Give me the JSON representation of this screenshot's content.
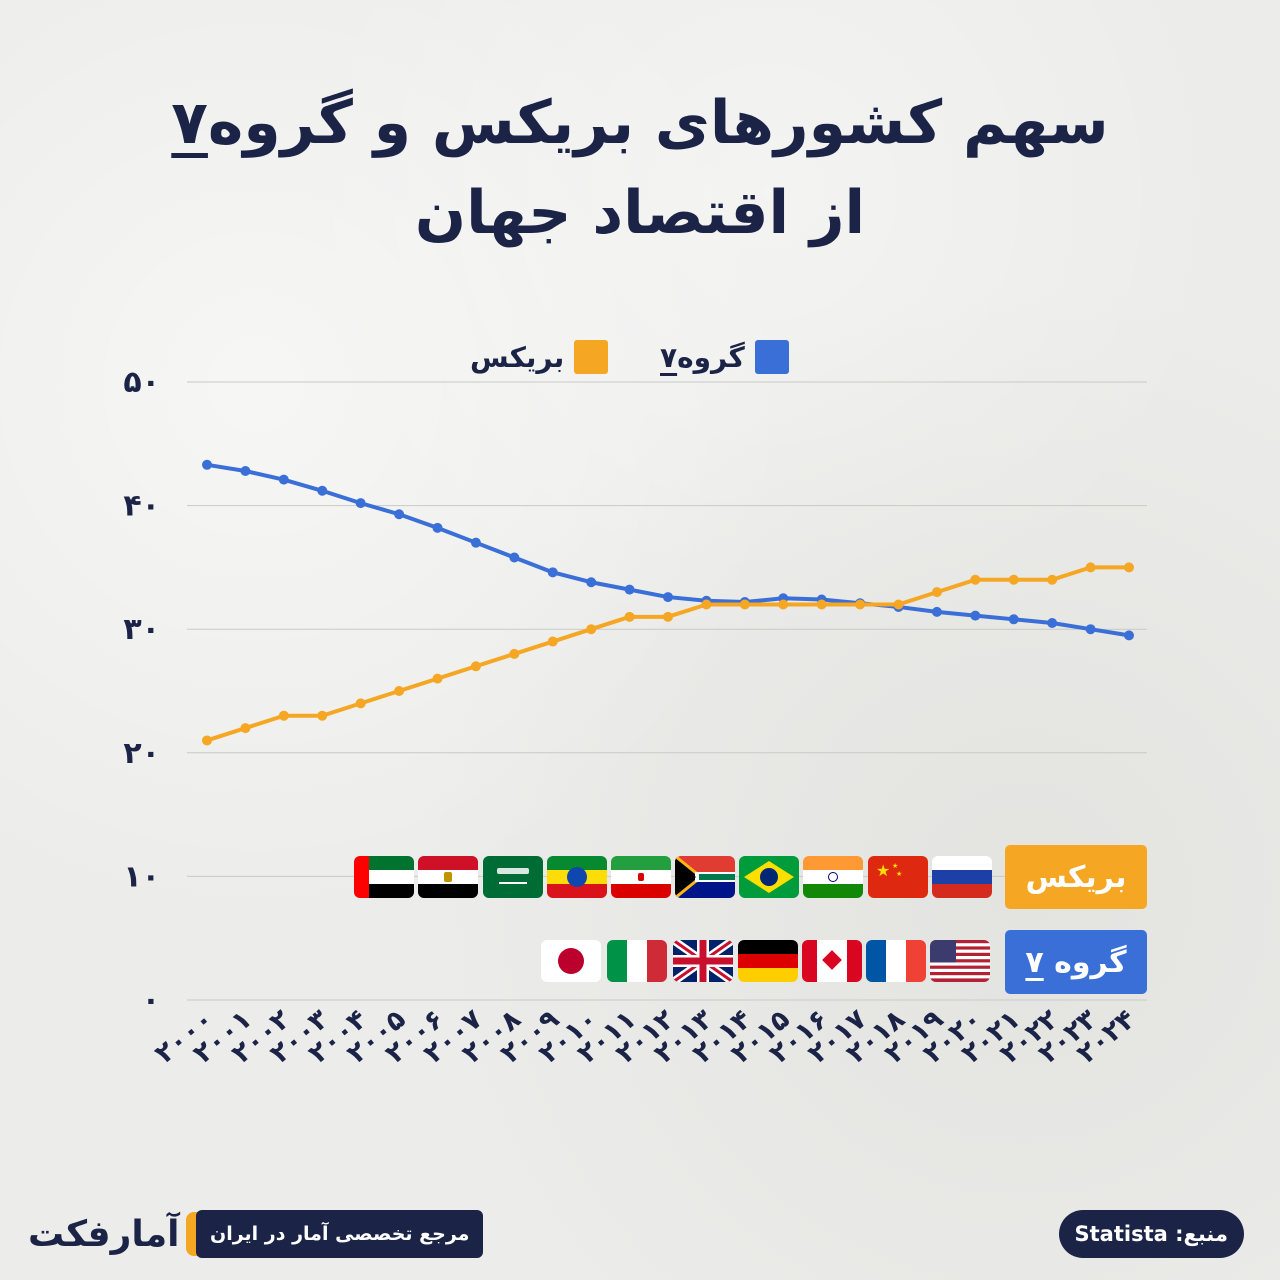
{
  "title": {
    "line1_prefix": "سهم کشورهای بریکس و گروه",
    "line1_number": "۷",
    "line2": "از اقتصاد جهان"
  },
  "legend": {
    "g7_label": "گروه",
    "g7_number": "۷",
    "brics_label": "بریکس"
  },
  "colors": {
    "g7": "#3b6fd8",
    "brics": "#f5a623",
    "text": "#1b2447",
    "grid": "#c9c9c6"
  },
  "badges": {
    "brics": "بریکس",
    "g7_prefix": "گروه",
    "g7_number": "۷"
  },
  "flags": {
    "brics": [
      "russia-flag",
      "china-flag",
      "india-flag",
      "brazil-flag",
      "south-africa-flag",
      "iran-flag",
      "ethiopia-flag",
      "saudi-arabia-flag",
      "egypt-flag",
      "uae-flag"
    ],
    "g7": [
      "usa-flag",
      "france-flag",
      "canada-flag",
      "germany-flag",
      "uk-flag",
      "italy-flag",
      "japan-flag"
    ]
  },
  "chart_data": {
    "type": "line",
    "x": [
      2000,
      2001,
      2002,
      2003,
      2004,
      2005,
      2006,
      2007,
      2008,
      2009,
      2010,
      2011,
      2012,
      2013,
      2014,
      2015,
      2016,
      2017,
      2018,
      2019,
      2020,
      2021,
      2022,
      2023,
      2024
    ],
    "x_tick_labels": [
      "۲۰۰۰",
      "۲۰۰۱",
      "۲۰۰۲",
      "۲۰۰۳",
      "۲۰۰۴",
      "۲۰۰۵",
      "۲۰۰۶",
      "۲۰۰۷",
      "۲۰۰۸",
      "۲۰۰۹",
      "۲۰۱۰",
      "۲۰۱۱",
      "۲۰۱۲",
      "۲۰۱۳",
      "۲۰۱۴",
      "۲۰۱۵",
      "۲۰۱۶",
      "۲۰۱۷",
      "۲۰۱۸",
      "۲۰۱۹",
      "۲۰۲۰",
      "۲۰۲۱",
      "۲۰۲۲",
      "۲۰۲۳",
      "۲۰۲۴"
    ],
    "y_ticks": [
      0,
      10,
      20,
      30,
      40,
      50
    ],
    "y_tick_labels": [
      "۰",
      "۱۰",
      "۲۰",
      "۳۰",
      "۴۰",
      "۵۰"
    ],
    "ylim": [
      0,
      50
    ],
    "grid": true,
    "legend_position": "top-center",
    "series": [
      {
        "name": "گروه ۷",
        "color": "#3b6fd8",
        "values": [
          43.3,
          42.8,
          42.1,
          41.2,
          40.2,
          39.3,
          38.2,
          37.0,
          35.8,
          34.6,
          33.8,
          33.2,
          32.6,
          32.3,
          32.2,
          32.5,
          32.4,
          32.1,
          31.8,
          31.4,
          31.1,
          30.8,
          30.5,
          30.0,
          29.5
        ]
      },
      {
        "name": "بریکس",
        "color": "#f5a623",
        "values": [
          21.0,
          22.0,
          23.0,
          23.0,
          24.0,
          25.0,
          26.0,
          27.0,
          28.0,
          29.0,
          30.0,
          31.0,
          31.0,
          32.0,
          32.0,
          32.0,
          32.0,
          32.0,
          32.0,
          33.0,
          34.0,
          34.0,
          34.0,
          35.0,
          35.0
        ]
      }
    ]
  },
  "footer": {
    "logo_text": "آمارفکت",
    "tagline": "مرجع تخصصی آمار در ایران",
    "source": "منبع: Statista"
  }
}
